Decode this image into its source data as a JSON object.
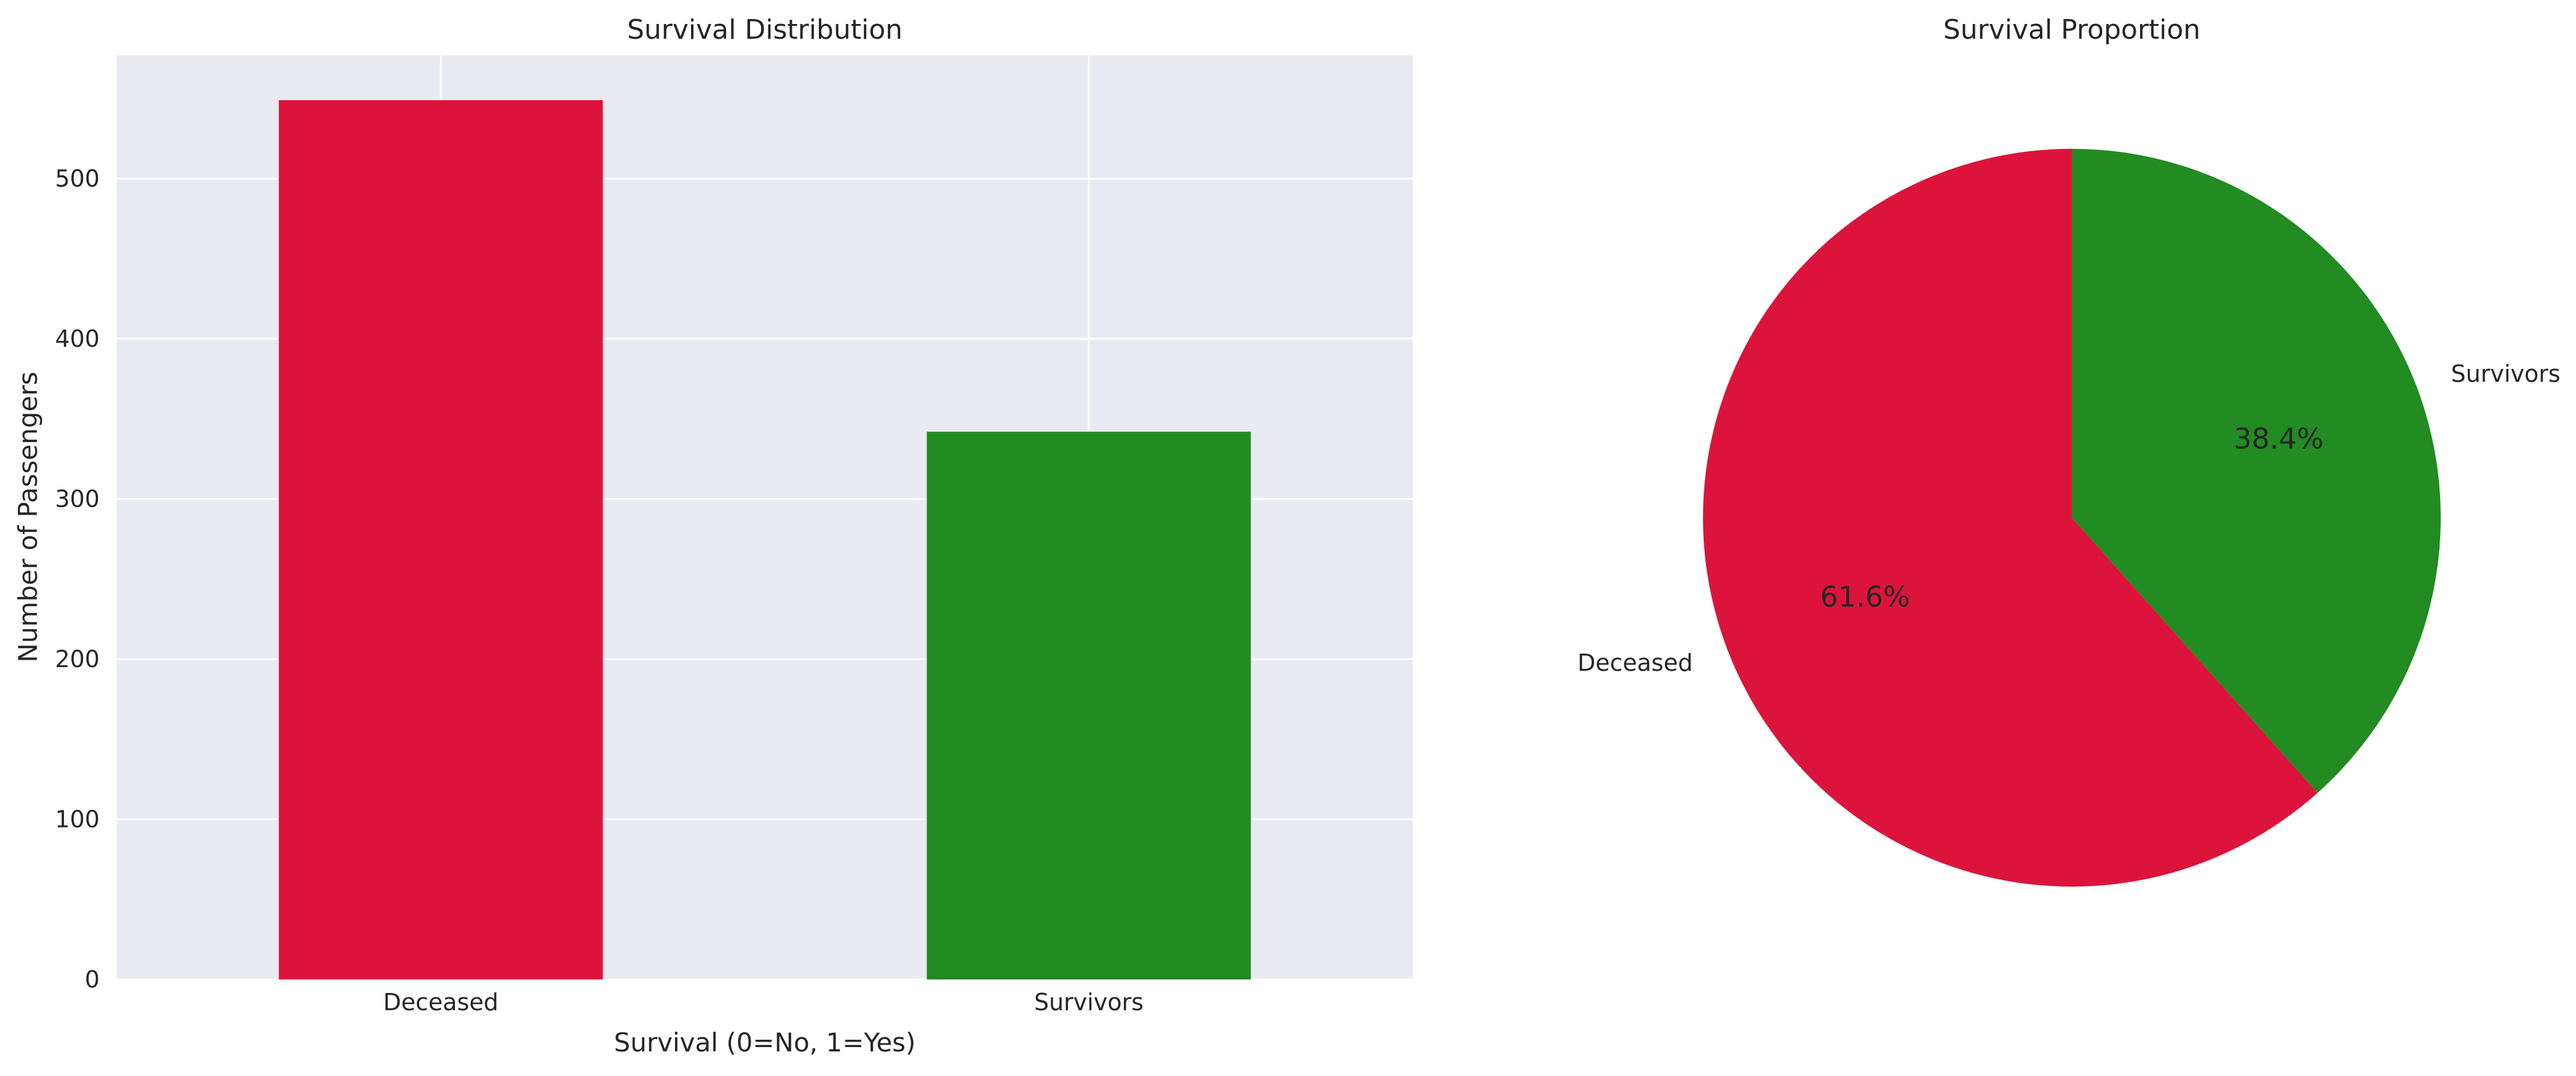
{
  "chart_data": [
    {
      "type": "bar",
      "title": "Survival Distribution",
      "xlabel": "Survival (0=No, 1=Yes)",
      "ylabel": "Number of Passengers",
      "categories": [
        "Deceased",
        "Survivors"
      ],
      "values": [
        549,
        342
      ],
      "colors": [
        "#dc143c",
        "#228b22"
      ],
      "ylim": [
        0,
        577
      ],
      "yticks": [
        0,
        100,
        200,
        300,
        400,
        500
      ],
      "grid": true,
      "background": "#eaeaf2"
    },
    {
      "type": "pie",
      "title": "Survival Proportion",
      "labels": [
        "Deceased",
        "Survivors"
      ],
      "values": [
        61.6,
        38.4
      ],
      "value_labels": [
        "61.6%",
        "38.4%"
      ],
      "colors": [
        "#dc143c",
        "#228b22"
      ]
    }
  ]
}
